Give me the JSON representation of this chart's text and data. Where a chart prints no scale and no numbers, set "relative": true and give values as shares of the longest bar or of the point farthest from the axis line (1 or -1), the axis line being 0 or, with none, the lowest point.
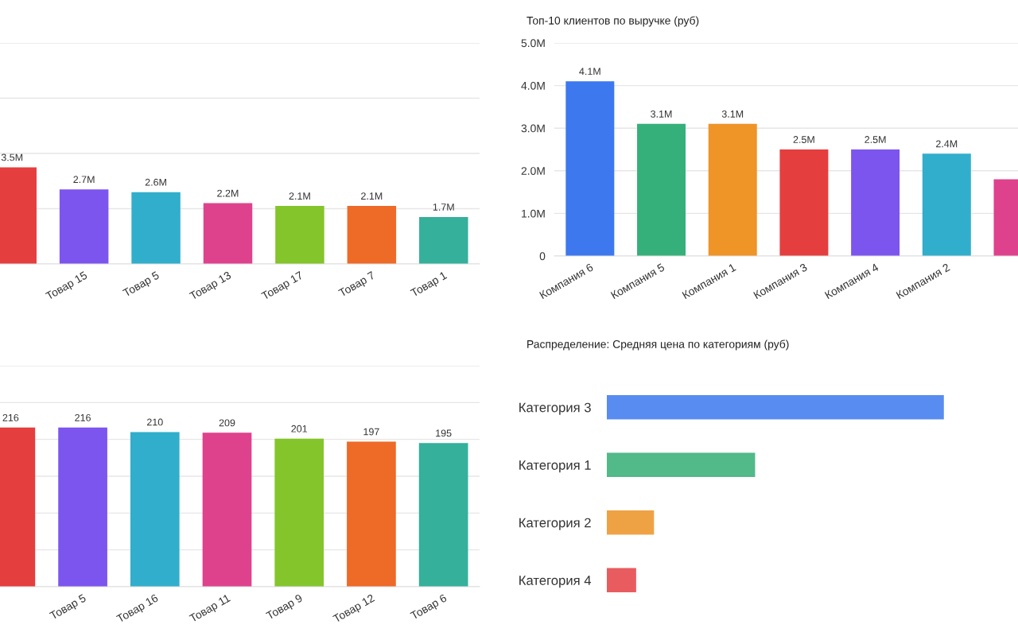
{
  "chart_data": [
    {
      "type": "bar",
      "categories": [
        null,
        "Товар 15",
        "Товар 5",
        "Товар 13",
        "Товар 17",
        "Товар 7",
        "Товар 1"
      ],
      "values": [
        3.5,
        2.7,
        2.6,
        2.2,
        2.1,
        2.1,
        1.7
      ],
      "colors": [
        "#e53e3e",
        "#7c55ef",
        "#31aecb",
        "#df428d",
        "#84c52b",
        "#ee6a27",
        "#35b09b"
      ],
      "value_labels": [
        "3.5M",
        "2.7M",
        "2.6M",
        "2.2M",
        "2.1M",
        "2.1M",
        "1.7M"
      ],
      "ylim": [
        0,
        8
      ],
      "yticks": [
        {
          "value": 0,
          "label": null
        },
        {
          "value": 2,
          "label": null
        },
        {
          "value": 4,
          "label": null
        },
        {
          "value": 6,
          "label": null
        },
        {
          "value": 8,
          "label": null
        }
      ],
      "tick_labels": "x",
      "grid": "y",
      "legend": false
    },
    {
      "type": "bar",
      "title": "Топ-10 клиентов по выручке (руб)",
      "categories": [
        "Компания 6",
        "Компания 5",
        "Компания 1",
        "Компания 3",
        "Компания 4",
        "Компания 2",
        null
      ],
      "values": [
        4.1,
        3.1,
        3.1,
        2.5,
        2.5,
        2.4,
        1.8
      ],
      "colors": [
        "#3d78ef",
        "#36b07a",
        "#ef9427",
        "#e53e3e",
        "#7c55ef",
        "#31aecb",
        "#df428d"
      ],
      "value_labels": [
        "4.1M",
        "3.1M",
        "3.1M",
        "2.5M",
        "2.5M",
        "2.4M",
        null
      ],
      "ylim": [
        0,
        5
      ],
      "yticks": [
        0,
        {
          "value": 1,
          "label": "1.0M"
        },
        {
          "value": 2,
          "label": "2.0M"
        },
        {
          "value": 3,
          "label": "3.0M"
        },
        {
          "value": 4,
          "label": "4.0M"
        },
        {
          "value": 5,
          "label": "5.0M"
        }
      ],
      "grid": "y",
      "legend": false
    },
    {
      "type": "bar",
      "categories": [
        null,
        "Товар 5",
        "Товар 16",
        "Товар 11",
        "Товар 9",
        "Товар 12",
        "Товар 6"
      ],
      "values": [
        216,
        216,
        210,
        209,
        201,
        197,
        195
      ],
      "colors": [
        "#e53e3e",
        "#7c55ef",
        "#31aecb",
        "#df428d",
        "#84c52b",
        "#ee6a27",
        "#35b09b"
      ],
      "data_labels": true,
      "ylim": [
        0,
        300
      ],
      "yticks": [
        {
          "value": 0,
          "label": null
        },
        {
          "value": 50,
          "label": null
        },
        {
          "value": 100,
          "label": null
        },
        {
          "value": 150,
          "label": null
        },
        {
          "value": 200,
          "label": null
        },
        {
          "value": 250,
          "label": null
        },
        {
          "value": 300,
          "label": null
        }
      ],
      "tick_labels": "x",
      "grid": "y",
      "legend": false
    },
    {
      "type": "bar",
      "title": "Распределение: Средняя цена по категориям (руб)",
      "orientation": "horizontal",
      "relative": true,
      "categories": [
        "Категория 3",
        "Категория 1",
        "Категория 2",
        "Категория 4"
      ],
      "values": [
        1,
        0.44,
        0.14,
        0.087
      ],
      "colors": [
        "#588cf0",
        "#52b989",
        "#efa244",
        "#e85c60"
      ],
      "legend": false
    }
  ]
}
